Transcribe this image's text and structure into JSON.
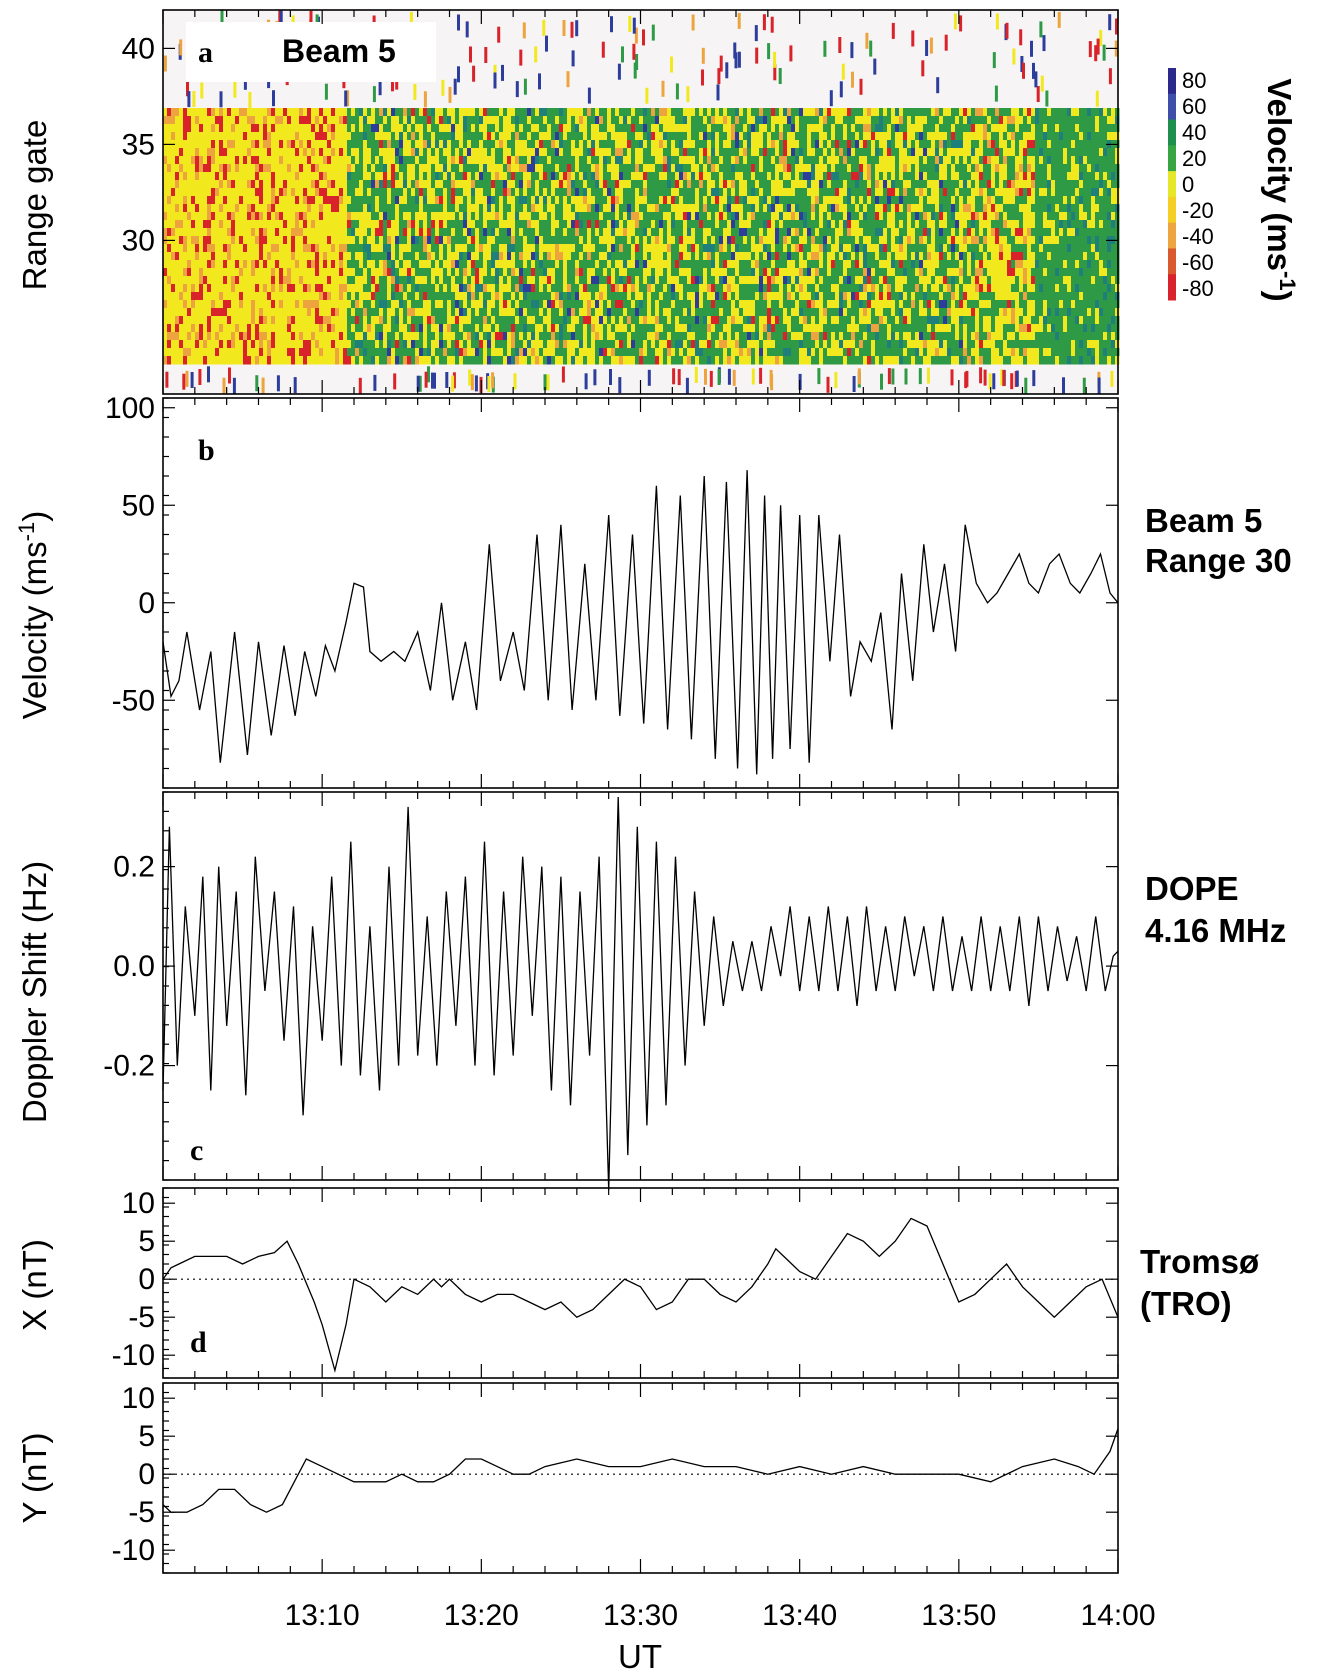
{
  "chart_data": {
    "type": "multi-panel",
    "x_axis": {
      "label": "UT",
      "ticks": [
        "13:10",
        "13:20",
        "13:30",
        "13:40",
        "13:50",
        "14:00"
      ],
      "range_minutes": [
        0,
        60
      ]
    },
    "panels": [
      {
        "id": "a",
        "type": "heatmap",
        "panel_label": "a",
        "title": "Beam 5",
        "ylabel": "Range gate",
        "yticks": [
          "40",
          "35",
          "30"
        ],
        "ylim": [
          22,
          42
        ],
        "colorbar": {
          "label": "Velocity (ms",
          "label_sup": "-1",
          "label_close": ")",
          "ticks": [
            "80",
            "60",
            "40",
            "20",
            "0",
            "-20",
            "-40",
            "-60",
            "-80"
          ],
          "colors": [
            "#2b2a8c",
            "#3d4fa8",
            "#1f8f4e",
            "#37a544",
            "#e6e62a",
            "#f5cf25",
            "#efa53f",
            "#d85a2e",
            "#d8222c"
          ]
        },
        "colors": {
          "red": "#d8232a",
          "orange": "#eda33e",
          "yellow": "#f2e81e",
          "green": "#2e9a46",
          "teal": "#1f7f7a",
          "blue": "#2c3d9c",
          "background": "#f7f4f5"
        }
      },
      {
        "id": "b",
        "type": "line",
        "panel_label": "b",
        "ylabel": "Velocity (ms",
        "ylabel_sup": "-1",
        "ylabel_close": ")",
        "yticks": [
          "100",
          "50",
          "0",
          "-50"
        ],
        "ylim": [
          -95,
          105
        ],
        "side_label": [
          "Beam 5",
          "Range 30"
        ],
        "series": {
          "x": [
            0.0,
            0.5,
            1.0,
            1.5,
            2.3,
            3.0,
            3.6,
            4.5,
            5.3,
            6.0,
            6.8,
            7.6,
            8.3,
            8.9,
            9.6,
            10.2,
            10.8,
            11.5,
            12.0,
            12.6,
            13.0,
            13.7,
            14.5,
            15.2,
            16.0,
            16.8,
            17.5,
            18.2,
            19.0,
            19.7,
            20.5,
            21.2,
            22.0,
            22.7,
            23.5,
            24.2,
            25.0,
            25.7,
            26.5,
            27.2,
            28.0,
            28.7,
            29.5,
            30.2,
            31.0,
            31.7,
            32.5,
            33.2,
            34.0,
            34.7,
            35.4,
            36.1,
            36.7,
            37.3,
            37.8,
            38.3,
            38.8,
            39.4,
            40.0,
            40.6,
            41.2,
            41.9,
            42.5,
            43.2,
            43.8,
            44.5,
            45.1,
            45.8,
            46.4,
            47.1,
            47.8,
            48.4,
            49.1,
            49.8,
            50.4,
            51.1,
            51.8,
            52.4,
            53.1,
            53.8,
            54.4,
            55.0,
            55.7,
            56.3,
            57.0,
            57.6,
            58.3,
            58.9,
            59.5,
            60.0
          ],
          "y": [
            -20,
            -48,
            -40,
            -15,
            -55,
            -25,
            -82,
            -15,
            -78,
            -20,
            -68,
            -22,
            -58,
            -25,
            -48,
            -22,
            -35,
            -10,
            10,
            8,
            -25,
            -30,
            -25,
            -30,
            -15,
            -45,
            0,
            -50,
            -20,
            -55,
            30,
            -40,
            -15,
            -45,
            35,
            -50,
            40,
            -55,
            20,
            -50,
            45,
            -58,
            35,
            -62,
            60,
            -65,
            55,
            -70,
            65,
            -80,
            62,
            -85,
            68,
            -88,
            55,
            -80,
            50,
            -75,
            45,
            -82,
            45,
            -30,
            35,
            -48,
            -20,
            -30,
            -5,
            -65,
            15,
            -40,
            30,
            -15,
            20,
            -25,
            40,
            10,
            0,
            5,
            15,
            25,
            10,
            5,
            20,
            25,
            10,
            5,
            15,
            25,
            5,
            0
          ]
        }
      },
      {
        "id": "c",
        "type": "line",
        "panel_label": "c",
        "ylabel": "Doppler Shift (Hz)",
        "yticks": [
          "0.2",
          "0.0",
          "-0.2"
        ],
        "ylim": [
          -0.43,
          0.35
        ],
        "side_label": [
          "DOPE",
          "4.16 MHz"
        ],
        "series": {
          "x": [
            0.0,
            0.4,
            0.9,
            1.4,
            2.0,
            2.5,
            3.0,
            3.5,
            4.0,
            4.6,
            5.2,
            5.8,
            6.4,
            7.0,
            7.6,
            8.2,
            8.8,
            9.4,
            10.0,
            10.6,
            11.2,
            11.8,
            12.4,
            13.0,
            13.6,
            14.2,
            14.8,
            15.4,
            16.0,
            16.6,
            17.2,
            17.8,
            18.4,
            19.0,
            19.6,
            20.2,
            20.8,
            21.4,
            22.0,
            22.6,
            23.2,
            23.8,
            24.4,
            25.0,
            25.6,
            26.2,
            26.8,
            27.4,
            28.0,
            28.6,
            29.2,
            29.8,
            30.4,
            31.0,
            31.6,
            32.2,
            32.8,
            33.4,
            34.0,
            34.6,
            35.2,
            35.8,
            36.4,
            37.0,
            37.6,
            38.2,
            38.8,
            39.4,
            40.0,
            40.6,
            41.2,
            41.8,
            42.4,
            43.0,
            43.6,
            44.2,
            44.8,
            45.4,
            46.0,
            46.6,
            47.2,
            47.8,
            48.4,
            49.0,
            49.6,
            50.2,
            50.8,
            51.4,
            52.0,
            52.6,
            53.2,
            53.8,
            54.4,
            55.0,
            55.6,
            56.2,
            56.8,
            57.4,
            58.0,
            58.6,
            59.2,
            59.7,
            60.0
          ],
          "y": [
            -0.25,
            0.28,
            -0.2,
            0.12,
            -0.1,
            0.18,
            -0.25,
            0.2,
            -0.12,
            0.15,
            -0.26,
            0.22,
            -0.05,
            0.15,
            -0.15,
            0.12,
            -0.3,
            0.08,
            -0.15,
            0.18,
            -0.2,
            0.25,
            -0.22,
            0.08,
            -0.25,
            0.2,
            -0.2,
            0.32,
            -0.18,
            0.1,
            -0.2,
            0.15,
            -0.12,
            0.18,
            -0.2,
            0.25,
            -0.22,
            0.15,
            -0.18,
            0.22,
            -0.1,
            0.2,
            -0.25,
            0.18,
            -0.28,
            0.15,
            -0.18,
            0.22,
            -0.45,
            0.34,
            -0.38,
            0.28,
            -0.32,
            0.25,
            -0.28,
            0.22,
            -0.2,
            0.15,
            -0.12,
            0.1,
            -0.08,
            0.05,
            -0.05,
            0.05,
            -0.05,
            0.08,
            -0.02,
            0.12,
            -0.05,
            0.1,
            -0.05,
            0.12,
            -0.05,
            0.1,
            -0.08,
            0.12,
            -0.05,
            0.08,
            -0.05,
            0.1,
            -0.02,
            0.08,
            -0.05,
            0.1,
            -0.05,
            0.06,
            -0.05,
            0.1,
            -0.05,
            0.08,
            -0.05,
            0.1,
            -0.08,
            0.1,
            -0.05,
            0.08,
            -0.03,
            0.06,
            -0.05,
            0.1,
            -0.05,
            0.02,
            0.03
          ]
        }
      },
      {
        "id": "d",
        "type": "line",
        "panel_label": "d",
        "ylabel": "X (nT)",
        "yticks": [
          "10",
          "5",
          "0",
          "-5",
          "-10"
        ],
        "ylim": [
          -13,
          12
        ],
        "zero_line": true,
        "side_label": [
          "Tromsø",
          "(TRO)"
        ],
        "series": {
          "x": [
            0.0,
            0.5,
            1.0,
            2.0,
            3.0,
            4.0,
            5.0,
            6.0,
            7.0,
            7.8,
            8.5,
            9.5,
            10.0,
            10.8,
            11.5,
            12.0,
            13.0,
            13.5,
            14.0,
            15.0,
            16.0,
            17.0,
            17.5,
            18.0,
            19.0,
            20.0,
            21.0,
            22.0,
            23.0,
            24.0,
            25.0,
            26.0,
            27.0,
            28.0,
            29.0,
            30.0,
            31.0,
            32.0,
            33.0,
            34.0,
            35.0,
            36.0,
            37.0,
            38.0,
            38.5,
            39.0,
            40.0,
            41.0,
            42.0,
            43.0,
            44.0,
            45.0,
            46.0,
            47.0,
            48.0,
            49.0,
            50.0,
            51.0,
            52.0,
            53.0,
            54.0,
            55.0,
            56.0,
            57.0,
            58.0,
            59.0,
            60.0
          ],
          "y": [
            0,
            1.5,
            2,
            3,
            3,
            3,
            2,
            3,
            3.5,
            5,
            2,
            -3,
            -6,
            -12,
            -6,
            0,
            -1,
            -2,
            -3,
            -1,
            -2,
            0,
            -1,
            0,
            -2,
            -3,
            -2,
            -2,
            -3,
            -4,
            -3,
            -5,
            -4,
            -2,
            0,
            -1,
            -4,
            -3,
            0,
            0,
            -2,
            -3,
            -1,
            2,
            4,
            3,
            1,
            0,
            3,
            6,
            5,
            3,
            5,
            8,
            7,
            2,
            -3,
            -2,
            0,
            2,
            -1,
            -3,
            -5,
            -3,
            -1,
            0,
            -5
          ]
        }
      },
      {
        "id": "e",
        "type": "line",
        "panel_label": "",
        "ylabel": "Y (nT)",
        "yticks": [
          "10",
          "5",
          "0",
          "-5",
          "-10"
        ],
        "ylim": [
          -13,
          12
        ],
        "zero_line": true,
        "series": {
          "x": [
            0.0,
            0.5,
            1.5,
            2.5,
            3.5,
            4.5,
            5.5,
            6.5,
            7.5,
            8.5,
            9.0,
            10.0,
            11.0,
            12.0,
            13.0,
            14.0,
            15.0,
            16.0,
            17.0,
            18.0,
            19.0,
            20.0,
            21.0,
            22.0,
            23.0,
            24.0,
            26.0,
            28.0,
            30.0,
            32.0,
            34.0,
            36.0,
            38.0,
            40.0,
            42.0,
            44.0,
            46.0,
            48.0,
            50.0,
            52.0,
            54.0,
            56.0,
            57.5,
            58.5,
            59.5,
            60.0
          ],
          "y": [
            -4,
            -5,
            -5,
            -4,
            -2,
            -2,
            -4,
            -5,
            -4,
            0,
            2,
            1,
            0,
            -1,
            -1,
            -1,
            0,
            -1,
            -1,
            0,
            2,
            2,
            1,
            0,
            0,
            1,
            2,
            1,
            1,
            2,
            1,
            1,
            0,
            1,
            0,
            1,
            0,
            0,
            0,
            -1,
            1,
            2,
            1,
            0,
            3,
            6
          ]
        }
      }
    ]
  }
}
